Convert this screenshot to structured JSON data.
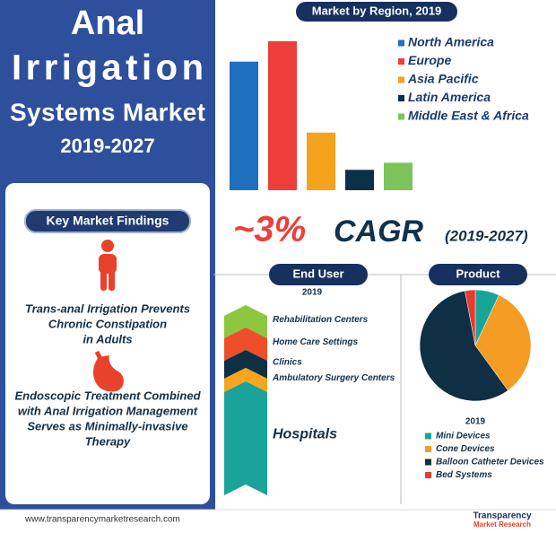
{
  "header": {
    "title": [
      "Anal",
      "Irrigation",
      "Systems Market"
    ],
    "period": "2019-2027"
  },
  "findings": {
    "title": "Key Market Findings",
    "items": [
      [
        "Trans-anal Irrigation Prevents",
        "Chronic Constipation",
        "in Adults"
      ],
      [
        "Endoscopic Treatment Combined",
        "with Anal Irrigation Management",
        "Serves as Minimally-invasive",
        "Therapy"
      ]
    ]
  },
  "cagr": {
    "value": "~3%",
    "label": "CAGR",
    "period": "(2019-2027)"
  },
  "chart_data": [
    {
      "type": "bar",
      "title": "Market by Region, 2019",
      "categories": [
        "North America",
        "Europe",
        "Asia Pacific",
        "Latin America",
        "Middle East & Africa"
      ],
      "values": [
        145,
        168,
        65,
        23,
        31
      ],
      "colors": [
        "#1f6fbf",
        "#ee3e3b",
        "#f5a21f",
        "#0c3047",
        "#7dc35b"
      ],
      "ylim": [
        0,
        170
      ]
    },
    {
      "type": "funnel",
      "title": "End User",
      "subtitle": "2019",
      "categories": [
        "Rehabilitation Centers",
        "Home Care Settings",
        "Clinics",
        "Ambulatory Surgery Centers",
        "Hospitals"
      ],
      "values": [
        25,
        25,
        20,
        15,
        115
      ],
      "colors": [
        "#8dc63f",
        "#ee4e2a",
        "#0e3045",
        "#f8a51e",
        "#1aa39a"
      ]
    },
    {
      "type": "pie",
      "title": "Product",
      "subtitle": "2019",
      "categories": [
        "Mini Devices",
        "Cone Devices",
        "Balloon Catheter Devices",
        "Bed Systems"
      ],
      "values": [
        7,
        33,
        57,
        3
      ],
      "colors": [
        "#17a59a",
        "#f59c24",
        "#0e2f44",
        "#e63b2e"
      ]
    }
  ],
  "footer": {
    "url": "www.transparencymarketresearch.com",
    "logo": [
      "Transparency",
      "Market Research"
    ]
  }
}
